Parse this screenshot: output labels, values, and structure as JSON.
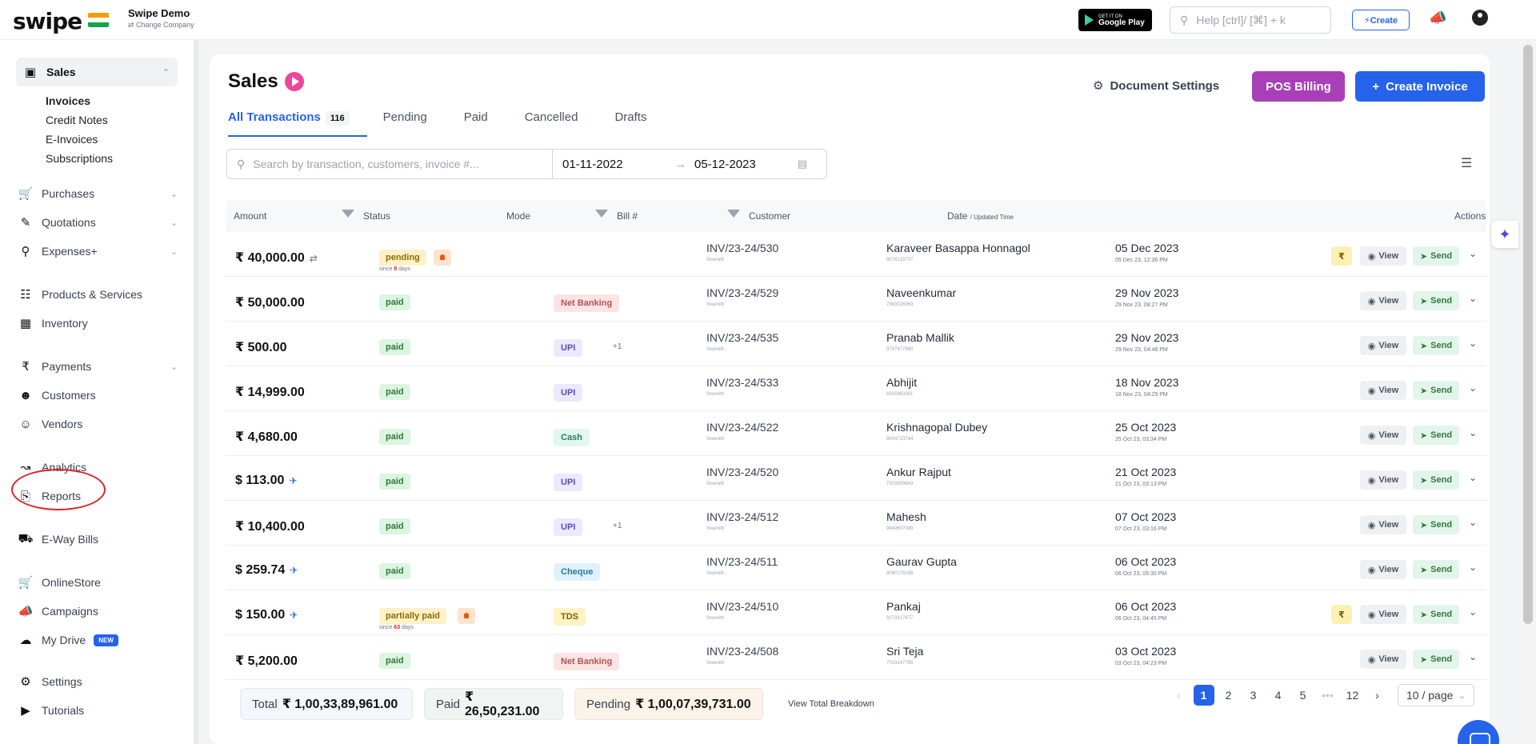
{
  "topbar": {
    "logo": "swipe",
    "company_name": "Swipe Demo",
    "company_sub": "⇄ Change Company",
    "gplay_small": "GET IT ON",
    "gplay_big": "Google Play",
    "help_placeholder": "Help [ctrl]/ [⌘] + k",
    "create_label": "⚡Create"
  },
  "sidebar": {
    "sales": "Sales",
    "sub_items": [
      "Invoices",
      "Credit Notes",
      "E-Invoices",
      "Subscriptions"
    ],
    "purchases": "Purchases",
    "quotations": "Quotations",
    "expenses": "Expenses+",
    "products": "Products & Services",
    "inventory": "Inventory",
    "payments": "Payments",
    "customers": "Customers",
    "vendors": "Vendors",
    "analytics": "Analytics",
    "reports": "Reports",
    "eway": "E-Way Bills",
    "onlinestore": "OnlineStore",
    "campaigns": "Campaigns",
    "mydrive": "My Drive",
    "new_badge": "NEW",
    "settings": "Settings",
    "tutorials": "Tutorials"
  },
  "header": {
    "title": "Sales",
    "doc_settings": "Document Settings",
    "pos_billing": "POS Billing",
    "create_invoice": "Create Invoice"
  },
  "tabs": {
    "all": "All Transactions",
    "all_count": "116",
    "pending": "Pending",
    "paid": "Paid",
    "cancelled": "Cancelled",
    "drafts": "Drafts"
  },
  "filters": {
    "search_placeholder": "Search by transaction, customers, invoice #...",
    "date_from": "01-11-2022",
    "date_to": "05-12-2023"
  },
  "table": {
    "headers": {
      "amount": "Amount",
      "status": "Status",
      "mode": "Mode",
      "bill": "Bill #",
      "customer": "Customer",
      "date": "Date",
      "date_sub": "/ Updated Time",
      "actions": "Actions"
    },
    "view_label": "View",
    "send_label": "Send",
    "rows": [
      {
        "amount": "₹ 40,000.00",
        "ext": "⇄",
        "status": "pending",
        "since": "since",
        "since_days": "8",
        "since_unit": "days",
        "mode": "",
        "plus": "",
        "bill": "INV/23-24/530",
        "bill_sub": "Sreenith",
        "customer": "Karaveer Basappa Honnagol",
        "customer_sub": "9076133707",
        "date": "05 Dec 2023",
        "date_sub": "05 Dec 23, 12:36 PM",
        "rupee": true
      },
      {
        "amount": "₹ 50,000.00",
        "ext": "",
        "status": "paid",
        "mode": "Net Banking",
        "plus": "",
        "bill": "INV/23-24/529",
        "bill_sub": "Sreenith",
        "customer": "Naveenkumar",
        "customer_sub": "7993026863",
        "date": "29 Nov 2023",
        "date_sub": "29 Nov 23, 08:27 PM",
        "rupee": false
      },
      {
        "amount": "₹ 500.00",
        "ext": "",
        "status": "paid",
        "mode": "UPI",
        "plus": "+1",
        "bill": "INV/23-24/535",
        "bill_sub": "Sreenith",
        "customer": "Pranab Mallik",
        "customer_sub": "9797677980",
        "date": "29 Nov 2023",
        "date_sub": "29 Nov 23, 04:48 PM",
        "rupee": false
      },
      {
        "amount": "₹ 14,999.00",
        "ext": "",
        "status": "paid",
        "mode": "UPI",
        "plus": "",
        "bill": "INV/23-24/533",
        "bill_sub": "Sreenith",
        "customer": "Abhijit",
        "customer_sub": "8305963381",
        "date": "18 Nov 2023",
        "date_sub": "18 Nov 23, 04:29 PM",
        "rupee": false
      },
      {
        "amount": "₹ 4,680.00",
        "ext": "",
        "status": "paid",
        "mode": "Cash",
        "plus": "",
        "bill": "INV/23-24/522",
        "bill_sub": "Sreenith",
        "customer": "Krishnagopal Dubey",
        "customer_sub": "8004723744",
        "date": "25 Oct 2023",
        "date_sub": "25 Oct 23, 03:34 PM",
        "rupee": false
      },
      {
        "amount": "$ 113.00",
        "ext": "✈",
        "status": "paid",
        "mode": "UPI",
        "plus": "",
        "bill": "INV/23-24/520",
        "bill_sub": "Sreenith",
        "customer": "Ankur Rajput",
        "customer_sub": "7303909643",
        "date": "21 Oct 2023",
        "date_sub": "21 Oct 23, 03:13 PM",
        "rupee": false
      },
      {
        "amount": "₹ 10,400.00",
        "ext": "",
        "status": "paid",
        "mode": "UPI",
        "plus": "+1",
        "bill": "INV/23-24/512",
        "bill_sub": "Sreenith",
        "customer": "Mahesh",
        "customer_sub": "9849607089",
        "date": "07 Oct 2023",
        "date_sub": "07 Oct 23, 03:16 PM",
        "rupee": false
      },
      {
        "amount": "$ 259.74",
        "ext": "✈",
        "status": "paid",
        "mode": "Cheque",
        "plus": "",
        "bill": "INV/23-24/511",
        "bill_sub": "Sreenith",
        "customer": "Gaurav Gupta",
        "customer_sub": "8090178286",
        "date": "06 Oct 2023",
        "date_sub": "06 Oct 23, 05:30 PM",
        "rupee": false
      },
      {
        "amount": "$ 150.00",
        "ext": "✈",
        "status": "partially paid",
        "since": "since",
        "since_days": "63",
        "since_unit": "days",
        "mode": "TDS",
        "plus": "",
        "bill": "INV/23-24/510",
        "bill_sub": "Sreenith",
        "customer": "Pankaj",
        "customer_sub": "9273317677",
        "date": "06 Oct 2023",
        "date_sub": "06 Oct 23, 04:45 PM",
        "rupee": true
      },
      {
        "amount": "₹ 5,200.00",
        "ext": "",
        "status": "paid",
        "mode": "Net Banking",
        "plus": "",
        "bill": "INV/23-24/508",
        "bill_sub": "Sreenith",
        "customer": "Sri Teja",
        "customer_sub": "7013147785",
        "date": "03 Oct 2023",
        "date_sub": "03 Oct 23, 04:23 PM",
        "rupee": false
      }
    ]
  },
  "footer": {
    "total_label": "Total",
    "total_value": "₹ 1,00,33,89,961.00",
    "paid_label": "Paid",
    "paid_value": "₹ 26,50,231.00",
    "pending_label": "Pending",
    "pending_value": "₹ 1,00,07,39,731.00",
    "breakdown": "View Total Breakdown",
    "pages": [
      "1",
      "2",
      "3",
      "4",
      "5",
      "•••",
      "12"
    ],
    "per_page": "10 / page"
  },
  "colors": {
    "accent": "#2563eb",
    "pos": "#a93fb6",
    "paid": "#2f7a3a",
    "pending": "#8a6d00"
  }
}
